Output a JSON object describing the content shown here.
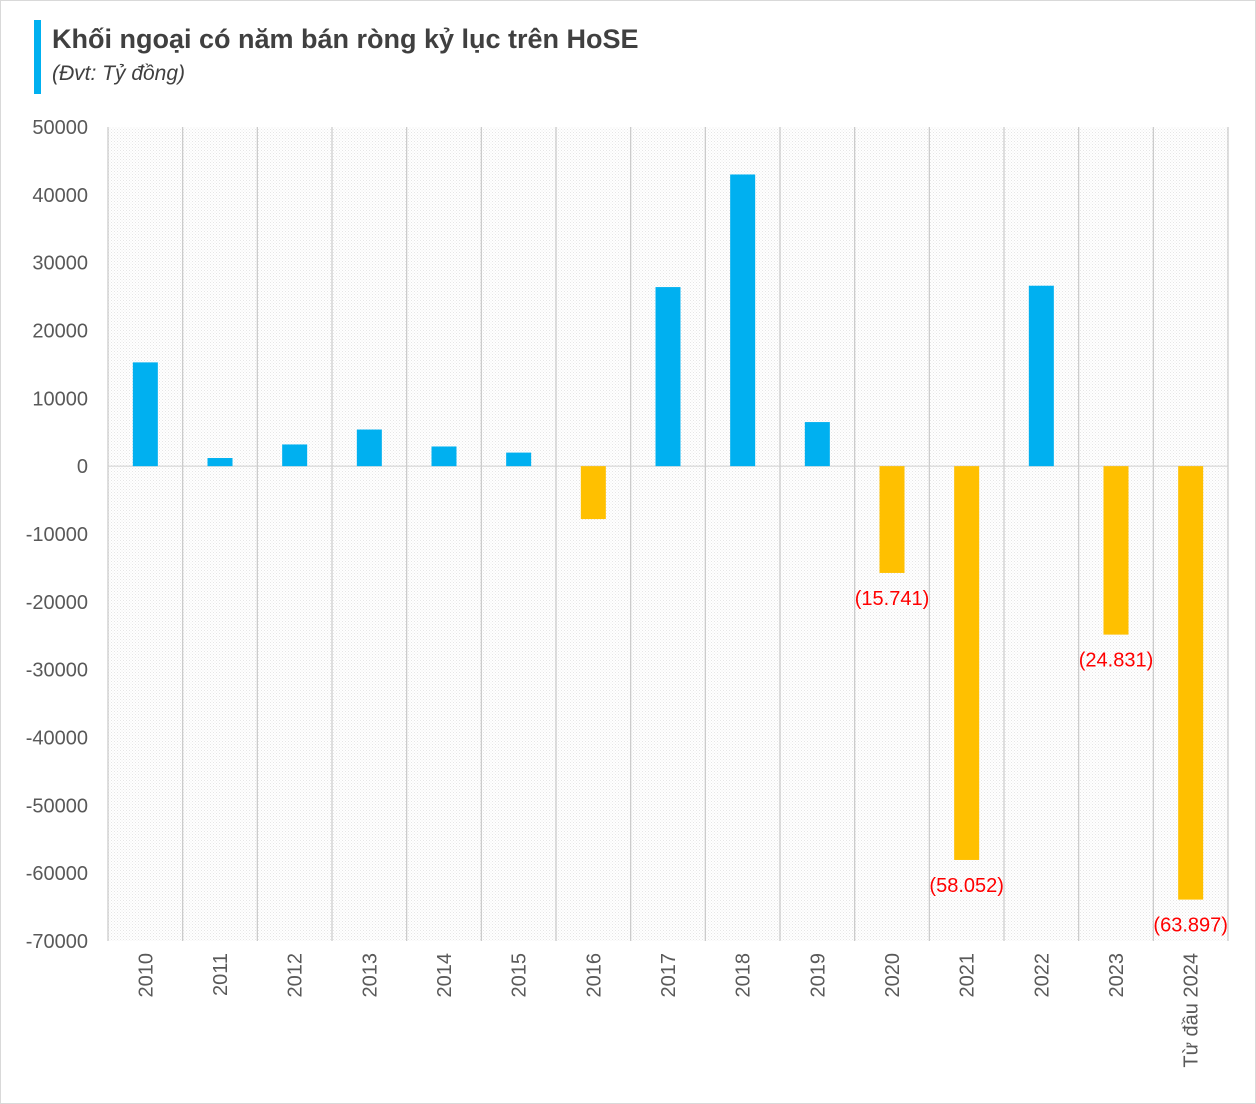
{
  "chart_data": {
    "type": "bar",
    "title": "Khối ngoại có năm bán ròng kỷ lục trên HoSE",
    "subtitle": "(Đvt: Tỷ đồng)",
    "categories": [
      "2010",
      "2011",
      "2012",
      "2013",
      "2014",
      "2015",
      "2016",
      "2017",
      "2018",
      "2019",
      "2020",
      "2021",
      "2022",
      "2023",
      "Từ đầu 2024"
    ],
    "values": [
      15300,
      1200,
      3200,
      5400,
      2900,
      2000,
      -7800,
      26400,
      43000,
      6500,
      -15741,
      -58052,
      26600,
      -24831,
      -63897
    ],
    "data_labels": [
      "",
      "",
      "",
      "",
      "",
      "",
      "",
      "",
      "",
      "",
      "(15.741)",
      "(58.052)",
      "",
      "(24.831)",
      "(63.897)"
    ],
    "ylim": [
      -70000,
      50000
    ],
    "yticks": [
      50000,
      40000,
      30000,
      20000,
      10000,
      0,
      -10000,
      -20000,
      -30000,
      -40000,
      -50000,
      -60000,
      -70000
    ],
    "xlabel": "",
    "ylabel": "",
    "colors": {
      "positive": "#00b0f0",
      "negative": "#ffc000",
      "label": "#ff0000",
      "axis_text": "#595959"
    }
  }
}
